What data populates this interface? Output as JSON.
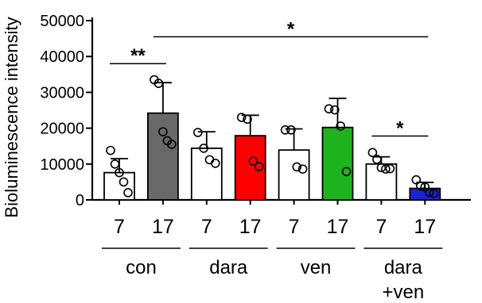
{
  "chart_data": {
    "type": "bar",
    "title": "",
    "xlabel": "",
    "ylabel": "Bioluminescence intensity",
    "ylim": [
      0,
      50000
    ],
    "yticks": [
      0,
      10000,
      20000,
      30000,
      40000,
      50000
    ],
    "grid": false,
    "error_bars": true,
    "categories": [
      "7",
      "17",
      "7",
      "17",
      "7",
      "17",
      "7",
      "17"
    ],
    "groups": [
      {
        "label_lines": [
          "con"
        ],
        "categories": [
          0,
          1
        ]
      },
      {
        "label_lines": [
          "dara"
        ],
        "categories": [
          2,
          3
        ]
      },
      {
        "label_lines": [
          "ven"
        ],
        "categories": [
          4,
          5
        ]
      },
      {
        "label_lines": [
          "dara",
          "+ven"
        ],
        "categories": [
          6,
          7
        ]
      }
    ],
    "values": [
      7600,
      24200,
      14400,
      17900,
      13900,
      20200,
      10000,
      3200
    ],
    "errors": [
      3900,
      8500,
      4600,
      5700,
      5900,
      8100,
      2000,
      1700
    ],
    "colors": [
      "#ffffff",
      "#696969",
      "#ffffff",
      "#ff0000",
      "#ffffff",
      "#1eb31e",
      "#ffffff",
      "#1c24d0"
    ],
    "points": [
      [
        13800,
        10000,
        7600,
        5000,
        2000
      ],
      [
        33500,
        32500,
        19000,
        16500,
        15500
      ],
      [
        18800,
        14400,
        11200,
        10200
      ],
      [
        23000,
        22500,
        10800,
        9300
      ],
      [
        19500,
        19500,
        9200,
        8600
      ],
      [
        25400,
        25100,
        20600,
        7900
      ],
      [
        13200,
        11300,
        9000,
        8600,
        8700
      ],
      [
        5600,
        3900,
        3600,
        2100,
        1800
      ]
    ],
    "annotations": [
      {
        "text": "**",
        "from": 0,
        "to": 1,
        "y": 38000
      },
      {
        "text": "*",
        "from": 1,
        "to": 7,
        "y": 45500
      },
      {
        "text": "*",
        "from": 6,
        "to": 7,
        "y": 17800
      }
    ]
  }
}
